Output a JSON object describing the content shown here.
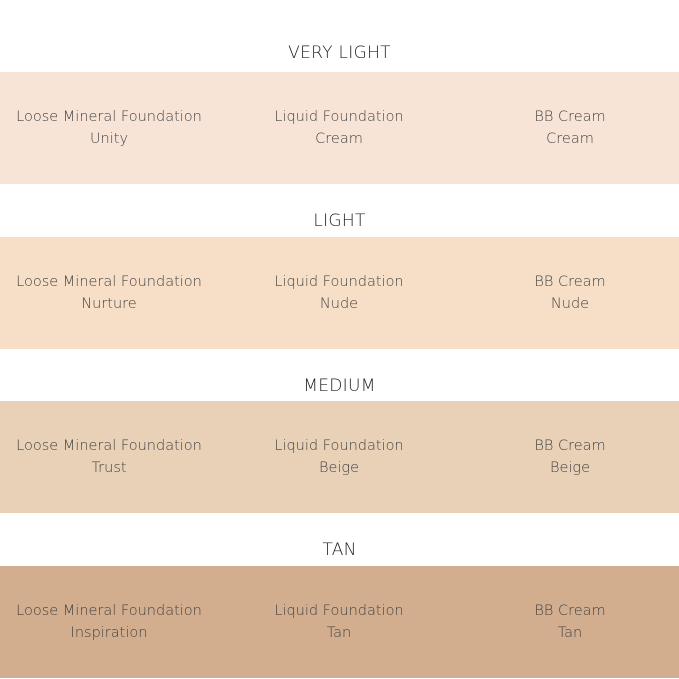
{
  "sections": [
    {
      "title": "VERY LIGHT",
      "color": "#f8e4d6",
      "items": [
        {
          "product": "Loose Mineral Foundation",
          "shade": "Unity"
        },
        {
          "product": "Liquid Foundation",
          "shade": "Cream"
        },
        {
          "product": "BB Cream",
          "shade": "Cream"
        }
      ]
    },
    {
      "title": "LIGHT",
      "color": "#f6dfc6",
      "items": [
        {
          "product": "Loose Mineral Foundation",
          "shade": "Nurture"
        },
        {
          "product": "Liquid Foundation",
          "shade": "Nude"
        },
        {
          "product": "BB Cream",
          "shade": "Nude"
        }
      ]
    },
    {
      "title": "MEDIUM",
      "color": "#e8d1b7",
      "items": [
        {
          "product": "Loose Mineral Foundation",
          "shade": "Trust"
        },
        {
          "product": "Liquid Foundation",
          "shade": "Beige"
        },
        {
          "product": "BB Cream",
          "shade": "Beige"
        }
      ]
    },
    {
      "title": "TAN",
      "color": "#d2ae8f",
      "items": [
        {
          "product": "Loose Mineral Foundation",
          "shade": "Inspiration"
        },
        {
          "product": "Liquid Foundation",
          "shade": "Tan"
        },
        {
          "product": "BB Cream",
          "shade": "Tan"
        }
      ]
    }
  ]
}
